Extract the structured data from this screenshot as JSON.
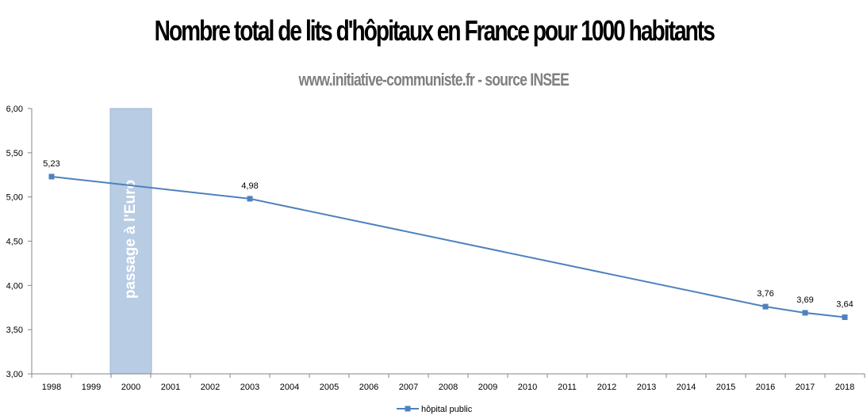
{
  "chart_data": {
    "type": "line",
    "title": "Nombre total de lits d'hôpitaux en France pour 1000 habitants",
    "subtitle": "www.initiative-communiste.fr - source INSEE",
    "categories": [
      "1998",
      "1999",
      "2000",
      "2001",
      "2002",
      "2003",
      "2004",
      "2005",
      "2006",
      "2007",
      "2008",
      "2009",
      "2010",
      "2011",
      "2012",
      "2013",
      "2014",
      "2015",
      "2016",
      "2017",
      "2018"
    ],
    "y_ticks": [
      "3,00",
      "3,50",
      "4,00",
      "4,50",
      "5,00",
      "5,50",
      "6,00"
    ],
    "ylim": [
      3.0,
      6.0
    ],
    "series": [
      {
        "name": "hôpital public",
        "color": "#4f81bd",
        "points": [
          {
            "x": "1998",
            "y": 5.23,
            "label": "5,23"
          },
          {
            "x": "2003",
            "y": 4.98,
            "label": "4,98"
          },
          {
            "x": "2016",
            "y": 3.76,
            "label": "3,76"
          },
          {
            "x": "2017",
            "y": 3.69,
            "label": "3,69"
          },
          {
            "x": "2018",
            "y": 3.64,
            "label": "3,64"
          }
        ]
      }
    ],
    "annotation": {
      "text": "passage à l'Euro",
      "x": "2000",
      "color": "#b8cce4"
    },
    "legend_position": "bottom",
    "grid": false
  }
}
